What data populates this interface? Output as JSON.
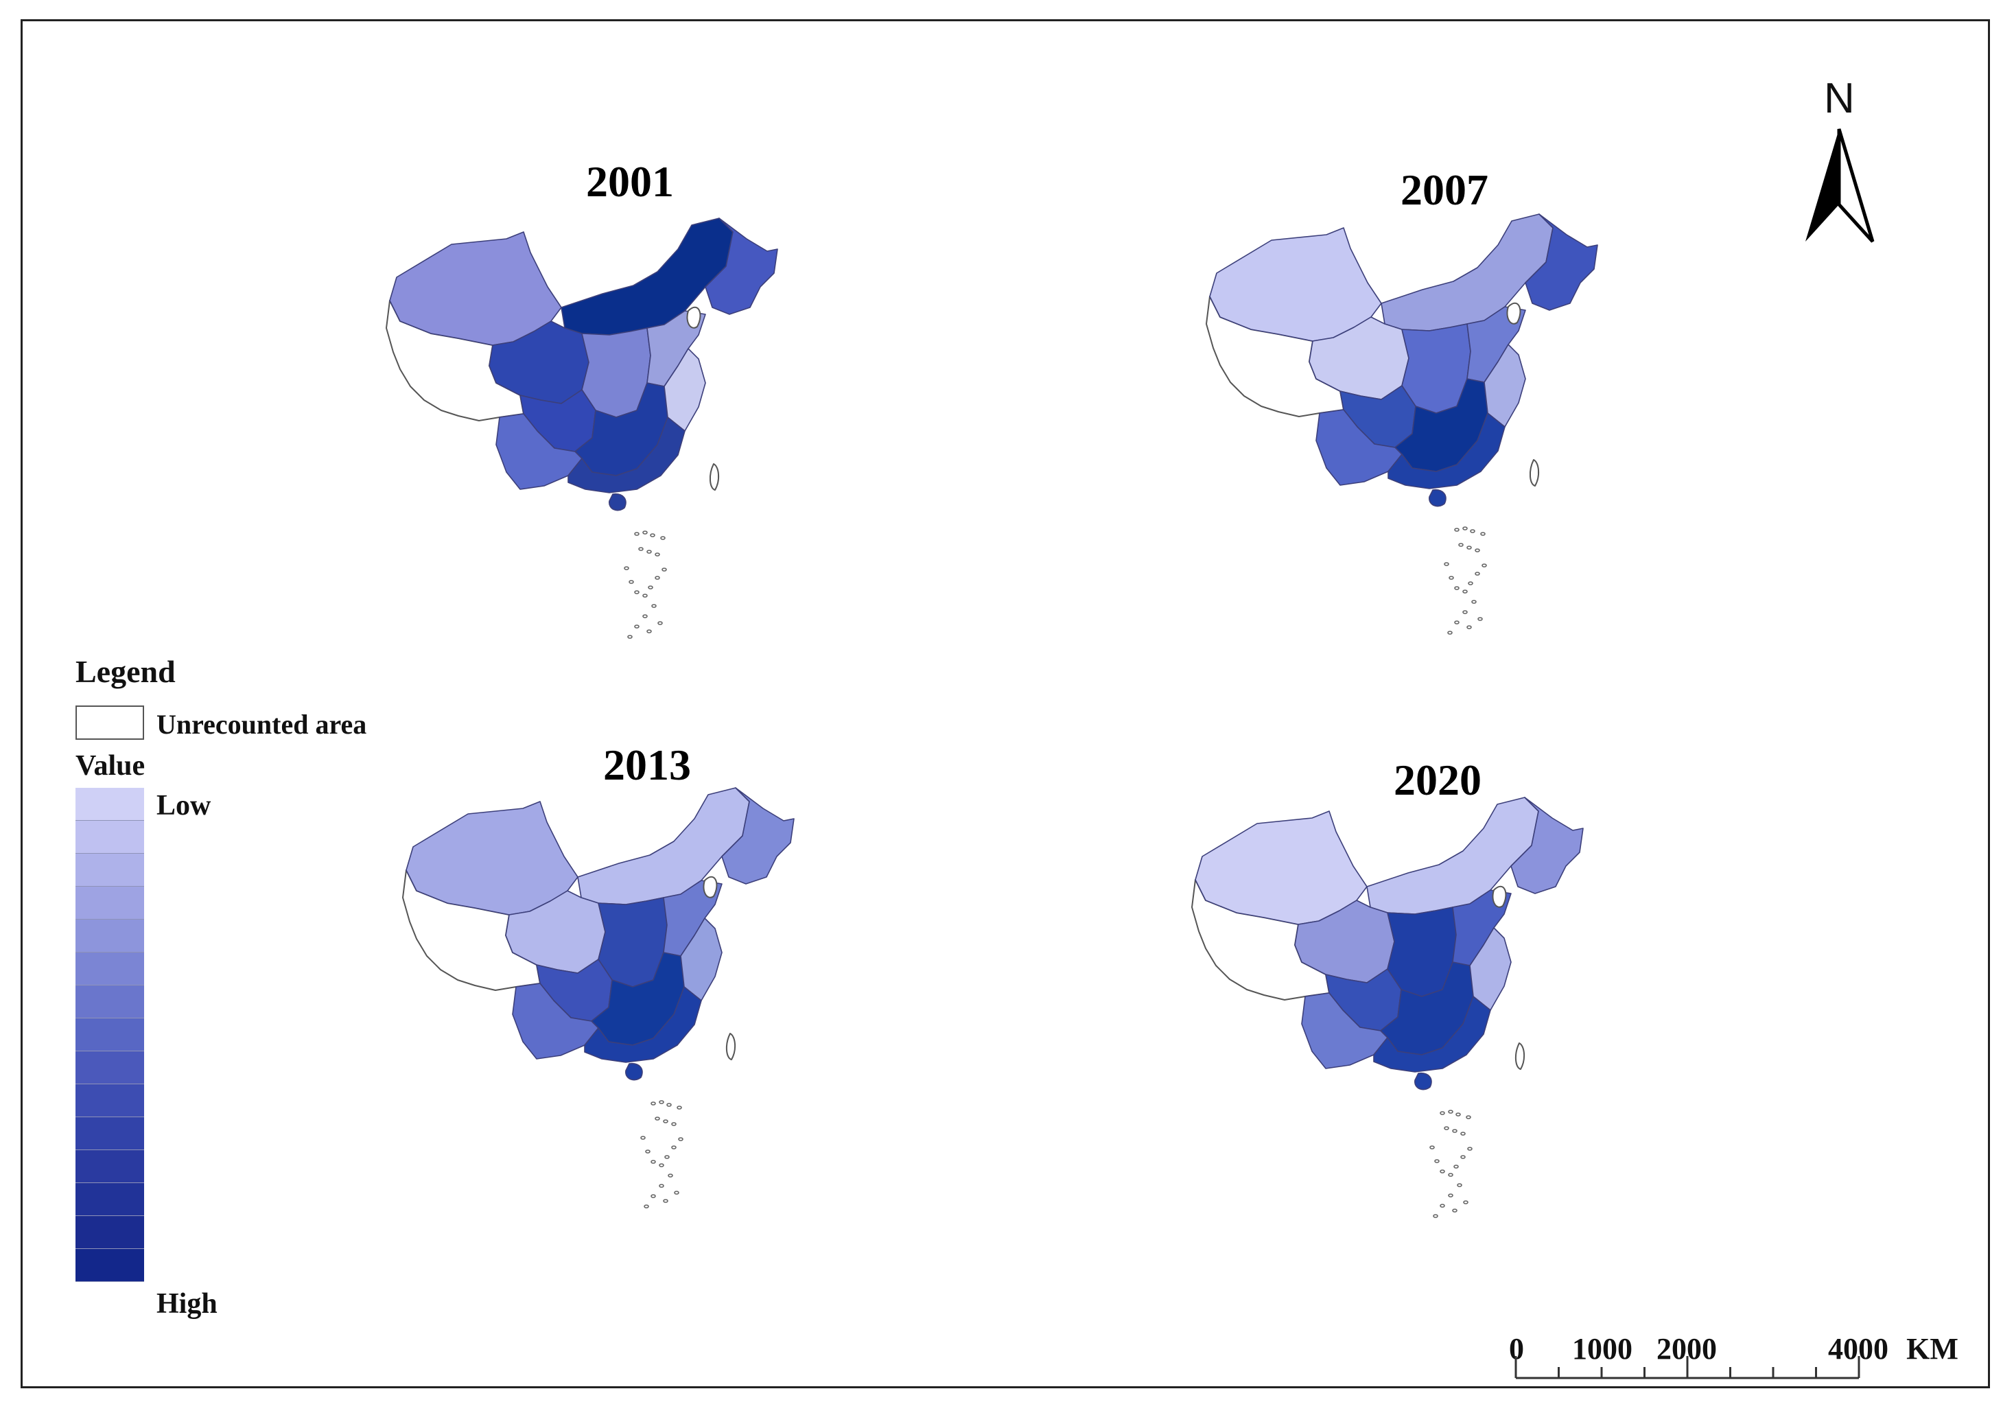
{
  "maps": [
    {
      "year": "2001",
      "fills": [
        "#8b8fdb",
        "#0a2f8c",
        "#4658c0",
        "#2e47b0",
        "#7b84d4",
        "#9aa1de",
        "#3248b5",
        "#1f3da2",
        "#5a6bcb",
        "#c8cbf0",
        "#27409f"
      ]
    },
    {
      "year": "2007",
      "fills": [
        "#c5c8f3",
        "#9aa1e0",
        "#3f55bd",
        "#c8cbf2",
        "#5a6ccd",
        "#6e7dd3",
        "#3452b6",
        "#0d3494",
        "#5266c8",
        "#a8afe6",
        "#1f41a6"
      ]
    },
    {
      "year": "2013",
      "fills": [
        "#a3a9e6",
        "#b7bcee",
        "#7f8bd8",
        "#b3b8ec",
        "#2f4aaf",
        "#6c7bd0",
        "#3d52b9",
        "#123a9c",
        "#5d6dca",
        "#94a0df",
        "#1d3fa5"
      ]
    },
    {
      "year": "2020",
      "fills": [
        "#cccef5",
        "#bfc3f1",
        "#8b93dc",
        "#9097dc",
        "#1f3fa6",
        "#4a5fc3",
        "#3651b7",
        "#1a3da2",
        "#6b7bd0",
        "#aeb4e9",
        "#2042a8"
      ]
    }
  ],
  "legend": {
    "title": "Legend",
    "unrecounted_label": "Unrecounted area",
    "value_title": "Value",
    "low_label": "Low",
    "high_label": "High",
    "ramp_colors": [
      "#cfd0f6",
      "#bfc1f1",
      "#aeb2ea",
      "#9ea3e3",
      "#8d95dc",
      "#7b85d4",
      "#6a76cc",
      "#5867c4",
      "#4b59bb",
      "#3d4db2",
      "#3243a9",
      "#2a3aa0",
      "#213398",
      "#1b2c90",
      "#13278b"
    ]
  },
  "north_arrow": {
    "label": "N",
    "icon": "north-arrow-icon"
  },
  "scale_bar": {
    "labels": [
      "0",
      "1000",
      "2000",
      "4000"
    ],
    "unit": "KM"
  }
}
